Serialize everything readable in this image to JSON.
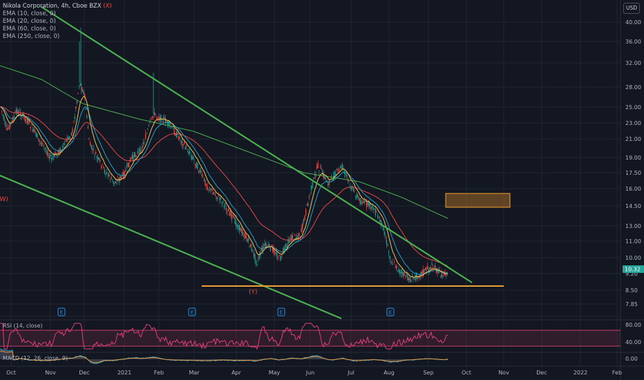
{
  "legend": {
    "title": "Nikola Corporation, 4h, Cboe BZX",
    "mark_x": "(X)",
    "lines": [
      "EMA (10, close, 0)",
      "EMA (20, close, 0)",
      "EMA (60, close, 0)",
      "EMA (250, close, 0)"
    ]
  },
  "currency": "USD",
  "price_labels": [
    "40.00",
    "36.00",
    "32.00",
    "28.00",
    "25.00",
    "23.00",
    "21.00",
    "19.00",
    "17.50",
    "16.00",
    "14.50",
    "13.00",
    "11.00",
    "10.00",
    "9.20",
    "8.50",
    "7.85"
  ],
  "time_labels": [
    "Oct",
    "Nov",
    "Dec",
    "2021",
    "Feb",
    "Mar",
    "Apr",
    "May",
    "Jun",
    "Jul",
    "Aug",
    "Sep",
    "Oct",
    "Nov",
    "Dec",
    "2022",
    "Feb"
  ],
  "last_price": "10.32",
  "annotations": {
    "w": "(W)",
    "y": "(Y)"
  },
  "earnings_marker": "E",
  "rsi": {
    "title": "RSI (14, close)",
    "labels": [
      "80.00",
      "40.00"
    ]
  },
  "macd": {
    "title": "MACD (12, 26, close, 9)",
    "labels": [
      "0.00"
    ]
  },
  "colors": {
    "background": "#131722",
    "trendline": "#4caf50",
    "support": "#f0a030",
    "ema10": "#f2c94c",
    "ema20": "#26a0c8",
    "ema60": "#e84848",
    "ema250": "#4caf50",
    "rsi": "#e0407a"
  }
}
